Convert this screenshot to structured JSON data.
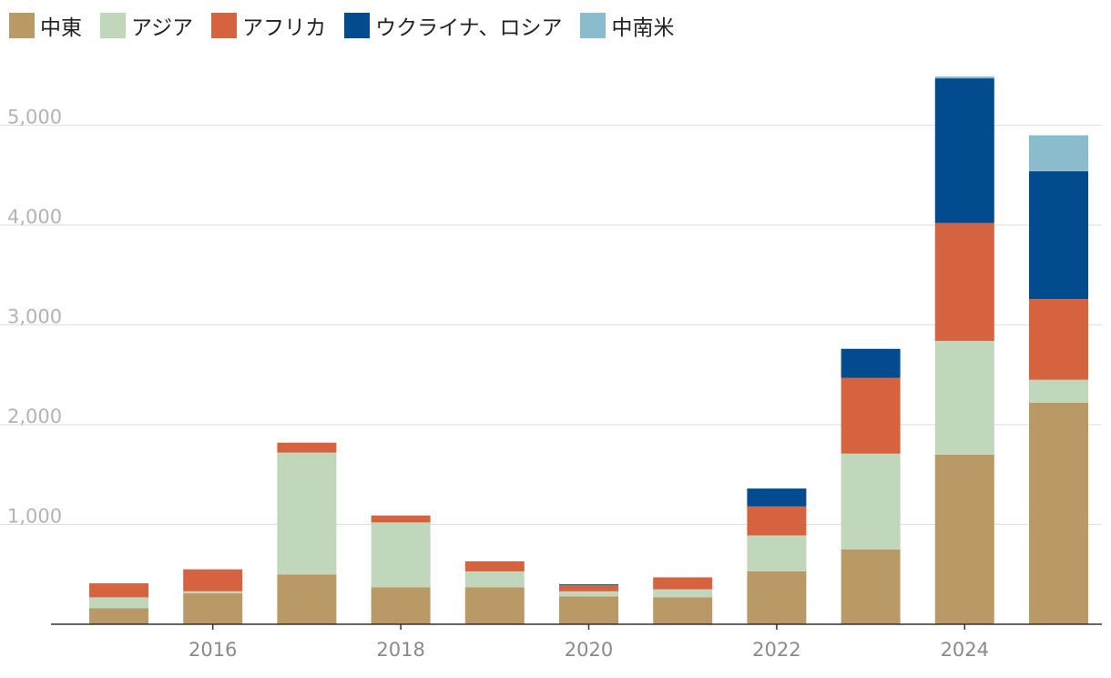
{
  "chart_data": {
    "type": "bar",
    "stacked": true,
    "categories": [
      "2015",
      "2016",
      "2017",
      "2018",
      "2019",
      "2020",
      "2021",
      "2022",
      "2023",
      "2024",
      "2025"
    ],
    "tick_labels": [
      "2016",
      "2018",
      "2020",
      "2022",
      "2024"
    ],
    "ylim": [
      0,
      5500
    ],
    "y_ticks": [
      1000,
      2000,
      3000,
      4000,
      5000
    ],
    "y_tick_labels": [
      "1,000",
      "2,000",
      "3,000",
      "4,000",
      "5,000"
    ],
    "title": "",
    "xlabel": "",
    "ylabel": "",
    "legend_position": "top-left",
    "series": [
      {
        "name": "中東",
        "color": "#b99a66",
        "values": [
          160,
          310,
          500,
          370,
          370,
          280,
          270,
          530,
          750,
          1700,
          2220
        ]
      },
      {
        "name": "アジア",
        "color": "#c1d7bc",
        "values": [
          110,
          20,
          1220,
          650,
          160,
          50,
          80,
          360,
          960,
          1140,
          230
        ]
      },
      {
        "name": "アフリカ",
        "color": "#d6633f",
        "values": [
          140,
          220,
          100,
          70,
          100,
          60,
          120,
          290,
          760,
          1180,
          810
        ]
      },
      {
        "name": "ウクライナ、ロシア",
        "color": "#034b8f",
        "values": [
          0,
          0,
          0,
          0,
          0,
          10,
          0,
          180,
          290,
          1450,
          1280
        ]
      },
      {
        "name": "中南米",
        "color": "#8bbccd",
        "values": [
          0,
          0,
          0,
          0,
          0,
          0,
          0,
          0,
          0,
          20,
          360
        ]
      }
    ]
  }
}
